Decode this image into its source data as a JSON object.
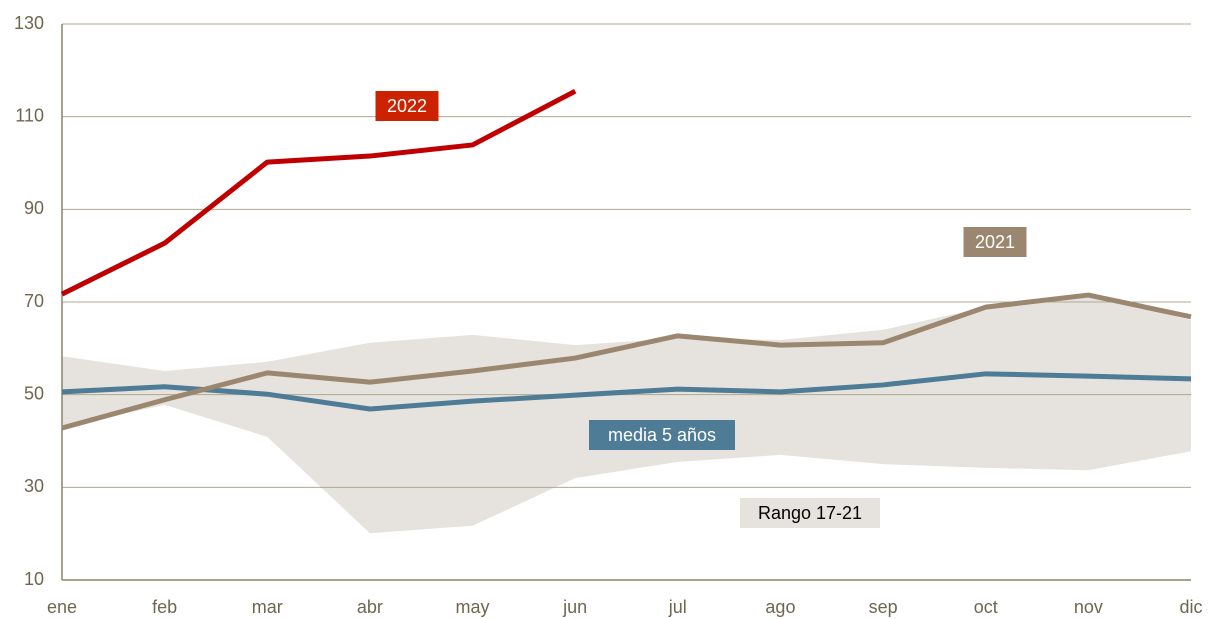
{
  "chart_data": {
    "type": "line",
    "categories": [
      "ene",
      "feb",
      "mar",
      "abr",
      "may",
      "jun",
      "jul",
      "ago",
      "sep",
      "oct",
      "nov",
      "dic"
    ],
    "ylim": [
      10,
      130
    ],
    "yticks": [
      10,
      30,
      50,
      70,
      90,
      110,
      130
    ],
    "grid": true,
    "range": {
      "name": "Rango 17-21",
      "color": "#e6e3df",
      "upper": [
        58.3,
        55.1,
        57.1,
        61.2,
        62.9,
        60.7,
        62.2,
        61.8,
        64.0,
        68.9,
        71.5,
        66.1
      ],
      "lower": [
        43.0,
        47.8,
        40.9,
        20.1,
        21.7,
        32.0,
        35.5,
        37.0,
        35.0,
        34.2,
        33.7,
        37.8
      ]
    },
    "series": [
      {
        "name": "media 5 años",
        "color": "#4e7b95",
        "values": [
          50.6,
          51.7,
          50.1,
          46.9,
          48.6,
          49.9,
          51.2,
          50.6,
          52.1,
          54.5,
          54.0,
          53.4
        ]
      },
      {
        "name": "2021",
        "color": "#9b8770",
        "values": [
          42.8,
          48.9,
          54.7,
          52.7,
          55.1,
          57.9,
          62.7,
          60.7,
          61.2,
          68.9,
          71.5,
          66.8
        ]
      },
      {
        "name": "2022",
        "color": "#c00000",
        "values": [
          71.7,
          82.7,
          100.2,
          101.5,
          103.9,
          115.5,
          null,
          null,
          null,
          null,
          null,
          null
        ]
      }
    ]
  }
}
